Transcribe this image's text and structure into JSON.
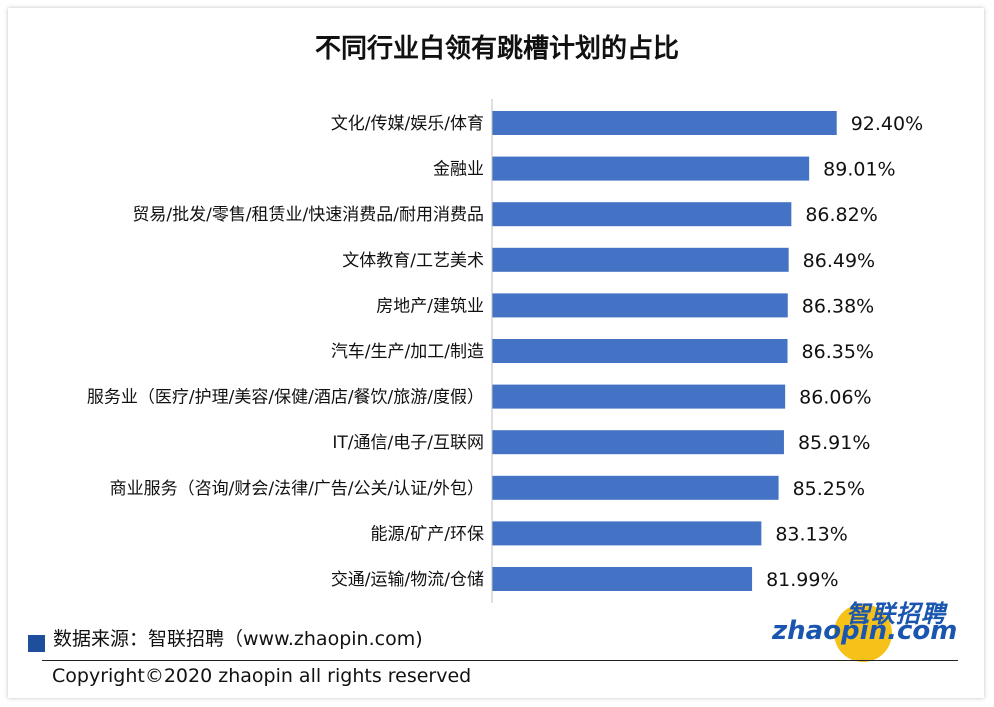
{
  "chart_data": {
    "type": "bar",
    "orientation": "horizontal",
    "title": "不同行业白领有跳槽计划的占比",
    "categories": [
      "文化/传媒/娱乐/体育",
      "金融业",
      "贸易/批发/零售/租赁业/快速消费品/耐用消费品",
      "文体教育/工艺美术",
      "房地产/建筑业",
      "汽车/生产/加工/制造",
      "服务业（医疗/护理/美容/保健/酒店/餐饮/旅游/度假）",
      "IT/通信/电子/互联网",
      "商业服务（咨询/财会/法律/广告/公关/认证/外包）",
      "能源/矿产/环保",
      "交通/运输/物流/仓储"
    ],
    "values": [
      92.4,
      89.01,
      86.82,
      86.49,
      86.38,
      86.35,
      86.06,
      85.91,
      85.25,
      83.13,
      81.99
    ],
    "value_labels": [
      "92.40%",
      "89.01%",
      "86.82%",
      "86.49%",
      "86.38%",
      "86.35%",
      "86.06%",
      "85.91%",
      "85.25%",
      "83.13%",
      "81.99%"
    ],
    "bar_color": "#4472c4",
    "xlim": [
      50,
      100
    ],
    "grid": false,
    "legend": false
  },
  "source": {
    "label": "数据来源：智联招聘（www.zhaopin.com)",
    "marker_color": "#1f4e9c"
  },
  "logo": {
    "cn": "智联招聘",
    "en": "zhaopin.com"
  },
  "footer": {
    "copyright": "Copyright©2020 zhaopin all rights reserved"
  }
}
